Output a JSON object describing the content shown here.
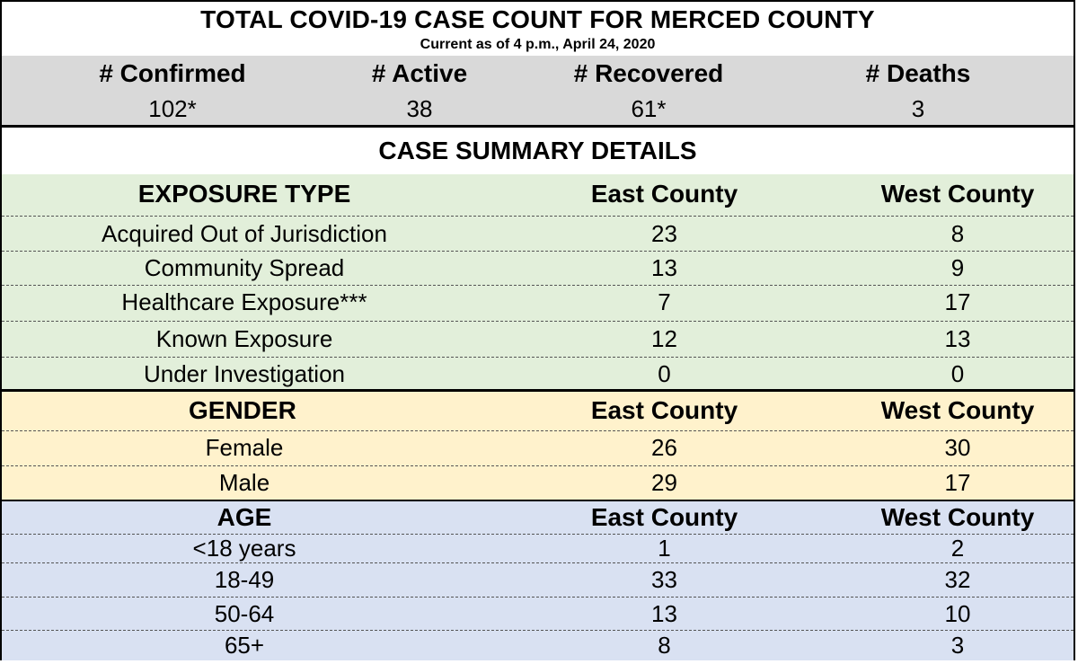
{
  "title": "TOTAL COVID-19 CASE COUNT FOR MERCED COUNTY",
  "subtitle": "Current as of 4 p.m., April 24, 2020",
  "counts": [
    {
      "label": "# Confirmed",
      "value": "102*"
    },
    {
      "label": "# Active",
      "value": "38"
    },
    {
      "label": "# Recovered",
      "value": "61*"
    },
    {
      "label": "# Deaths",
      "value": "3"
    }
  ],
  "summary_title": "CASE SUMMARY DETAILS",
  "exposure": {
    "header": [
      "EXPOSURE TYPE",
      "East County",
      "West County"
    ],
    "rows": [
      [
        "Acquired Out of Jurisdiction",
        "23",
        "8"
      ],
      [
        "Community Spread",
        "13",
        "9"
      ],
      [
        "Healthcare Exposure***",
        "7",
        "17"
      ],
      [
        "Known Exposure",
        "12",
        "13"
      ],
      [
        "Under Investigation",
        "0",
        "0"
      ]
    ]
  },
  "gender": {
    "header": [
      "GENDER",
      "East County",
      "West County"
    ],
    "rows": [
      [
        "Female",
        "26",
        "30"
      ],
      [
        "Male",
        "29",
        "17"
      ]
    ]
  },
  "age": {
    "header": [
      "AGE",
      "East County",
      "West County"
    ],
    "rows": [
      [
        "<18 years",
        "1",
        "2"
      ],
      [
        "18-49",
        "33",
        "32"
      ],
      [
        "50-64",
        "13",
        "10"
      ],
      [
        "65+",
        "8",
        "3"
      ]
    ]
  }
}
